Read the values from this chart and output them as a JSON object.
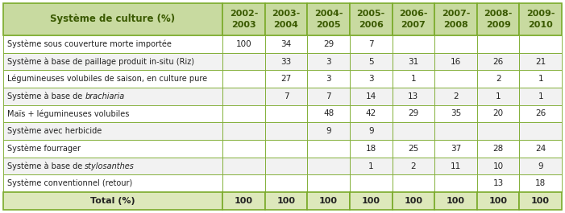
{
  "header_col0": "Système de culture (%)",
  "header_years": [
    "2002-\n2003",
    "2003-\n2004",
    "2004-\n2005",
    "2005-\n2006",
    "2006-\n2007",
    "2007-\n2008",
    "2008-\n2009",
    "2009-\n2010"
  ],
  "rows": [
    {
      "label": "Système sous couverture morte importée",
      "italic": null,
      "vals": [
        "100",
        "34",
        "29",
        "7",
        "",
        "",
        "",
        ""
      ]
    },
    {
      "label": "Système à base de paillage produit in-situ (Riz)",
      "italic": null,
      "vals": [
        "",
        "33",
        "3",
        "5",
        "31",
        "16",
        "26",
        "21"
      ]
    },
    {
      "label": "Légumineuses volubiles de saison, en culture pure",
      "italic": null,
      "vals": [
        "",
        "27",
        "3",
        "3",
        "1",
        "",
        "2",
        "1"
      ]
    },
    {
      "label": "Système à base de brachiaria",
      "italic": "brachiaria",
      "vals": [
        "",
        "7",
        "7",
        "14",
        "13",
        "2",
        "1",
        "1"
      ]
    },
    {
      "label": "Maïs + légumineuses volubiles",
      "italic": null,
      "vals": [
        "",
        "",
        "48",
        "42",
        "29",
        "35",
        "20",
        "26"
      ]
    },
    {
      "label": "Système avec herbicide",
      "italic": null,
      "vals": [
        "",
        "",
        "9",
        "9",
        "",
        "",
        "",
        ""
      ]
    },
    {
      "label": "Système fourrager",
      "italic": null,
      "vals": [
        "",
        "",
        "",
        "18",
        "25",
        "37",
        "28",
        "24"
      ]
    },
    {
      "label": "Système à base de stylosanthes",
      "italic": "stylosanthes",
      "vals": [
        "",
        "",
        "",
        "1",
        "2",
        "11",
        "10",
        "9"
      ]
    },
    {
      "label": "Système conventionnel (retour)",
      "italic": null,
      "vals": [
        "",
        "",
        "",
        "",
        "",
        "",
        "13",
        "18"
      ]
    }
  ],
  "total_vals": [
    "100",
    "100",
    "100",
    "100",
    "100",
    "100",
    "100",
    "100"
  ],
  "header_bg": "#c8daa0",
  "header_text_color": "#3a5a00",
  "data_row_bg_even": "#ffffff",
  "data_row_bg_odd": "#f2f2f2",
  "total_bg": "#dde8bb",
  "border_color": "#7aaa2a",
  "text_color": "#222222",
  "fig_w": 7.01,
  "fig_h": 2.65,
  "dpi": 100
}
